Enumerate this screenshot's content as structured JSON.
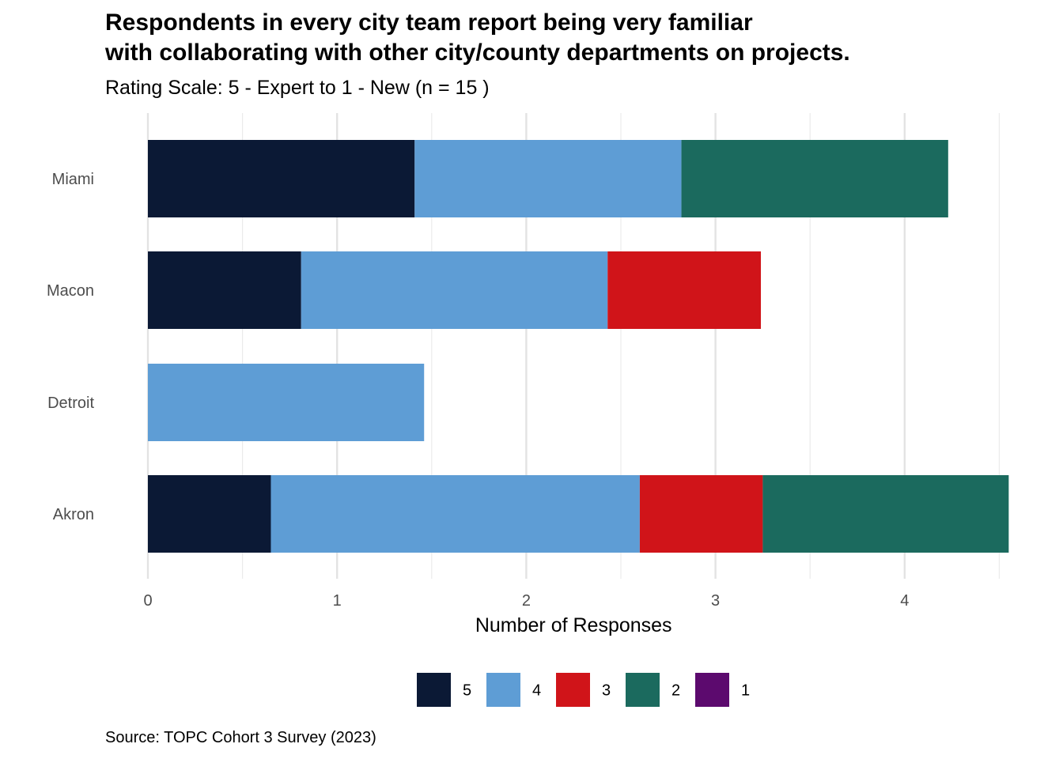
{
  "chart_data": {
    "type": "bar",
    "orientation": "horizontal",
    "stacked": true,
    "title_lines": [
      "Respondents in every city team report being very familiar",
      "with collaborating with other city/county departments on projects."
    ],
    "subtitle": "Rating Scale: 5 - Expert to 1 - New (n = 15 )",
    "caption": "Source: TOPC Cohort 3 Survey (2023)",
    "xlabel": "Number of Responses",
    "ylabel": "",
    "xlim": [
      0,
      4.5
    ],
    "xticks": [
      "0",
      "1",
      "2",
      "3",
      "4"
    ],
    "categories": [
      "Miami",
      "Macon",
      "Detroit",
      "Akron"
    ],
    "series": [
      {
        "name": "5",
        "color": "#0b1935",
        "values": [
          1.41,
          0.81,
          0,
          0.65
        ]
      },
      {
        "name": "4",
        "color": "#5e9dd5",
        "values": [
          1.41,
          1.62,
          1.46,
          1.95
        ]
      },
      {
        "name": "3",
        "color": "#d01419",
        "values": [
          0,
          0.81,
          0,
          0.65
        ]
      },
      {
        "name": "2",
        "color": "#1b6a5e",
        "values": [
          1.41,
          0,
          0,
          1.3
        ]
      },
      {
        "name": "1",
        "color": "#5c0a6e",
        "values": [
          0,
          0,
          0,
          0
        ]
      }
    ],
    "legend_position": "bottom"
  }
}
